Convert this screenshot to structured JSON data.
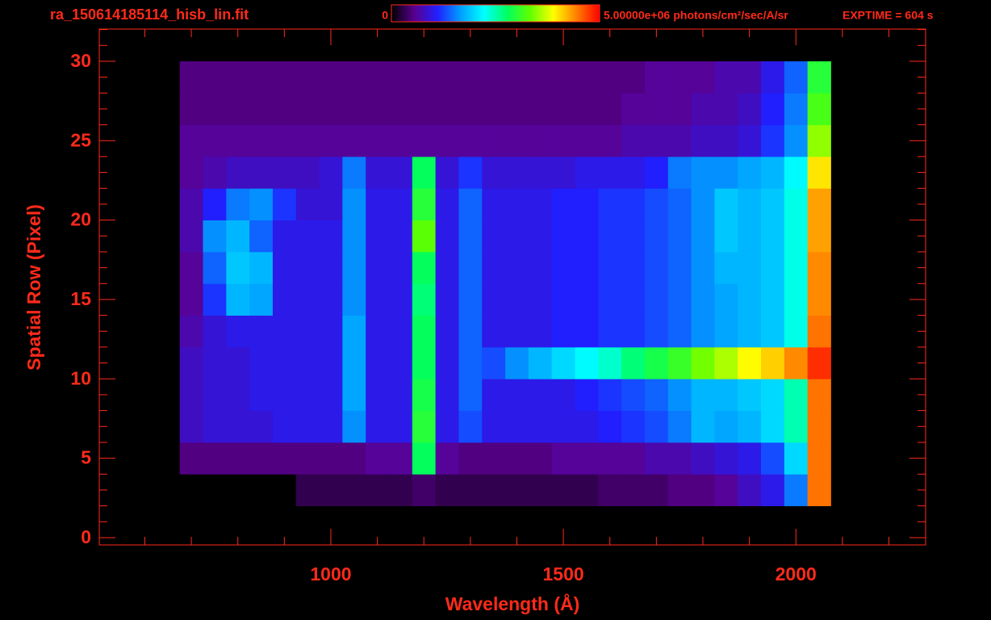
{
  "chart_data": {
    "type": "heatmap",
    "title": "ra_150614185114_hisb_lin.fit",
    "exposure": "EXPTIME = 604 s",
    "x_label": "Wavelength (Å)",
    "y_label": "Spatial Row (Pixel)",
    "xlim": [
      502,
      2279
    ],
    "ylim": [
      -0.46,
      32.03
    ],
    "xticks": [
      1000,
      1500,
      2000
    ],
    "yticks": [
      0,
      5,
      10,
      15,
      20,
      25,
      30
    ],
    "xminorticks": [
      600,
      700,
      800,
      900,
      1100,
      1200,
      1300,
      1400,
      1600,
      1700,
      1800,
      1900,
      2100,
      2200
    ],
    "yminorticks": [
      1,
      2,
      3,
      4,
      6,
      7,
      8,
      9,
      11,
      12,
      13,
      14,
      16,
      17,
      18,
      19,
      21,
      22,
      23,
      24,
      26,
      27,
      28,
      29,
      31,
      32
    ],
    "axis_color": "#ff2a1a",
    "colorbar": {
      "ticks": [
        0,
        {
          "value": 5000000,
          "label": "5.00000e+06"
        }
      ],
      "unit": "photons/cm²/sec/A/sr",
      "colors": [
        "#000000",
        "#5a0090",
        "#2020ff",
        "#00a0ff",
        "#00ffff",
        "#00ff60",
        "#60ff00",
        "#ffff00",
        "#ff8000",
        "#ff0000"
      ]
    },
    "xedges": [
      675,
      725,
      775,
      825,
      875,
      925,
      975,
      1025,
      1075,
      1125,
      1175,
      1225,
      1275,
      1325,
      1375,
      1425,
      1475,
      1525,
      1575,
      1625,
      1675,
      1725,
      1775,
      1825,
      1875,
      1925,
      1975,
      2025,
      2075
    ],
    "yedges": [
      2,
      4,
      6,
      8,
      10,
      12,
      14,
      16,
      18,
      20,
      22,
      24,
      26,
      28,
      30
    ],
    "z": [
      [
        0,
        0,
        0,
        0,
        0,
        300000.0,
        300000.0,
        300000.0,
        300000.0,
        300000.0,
        400000.0,
        300000.0,
        300000.0,
        300000.0,
        300000.0,
        300000.0,
        300000.0,
        300000.0,
        400000.0,
        400000.0,
        400000.0,
        500000.0,
        500000.0,
        600000.0,
        800000.0,
        1000000.0,
        1500000.0,
        4500000.0
      ],
      [
        500000.0,
        500000.0,
        500000.0,
        500000.0,
        500000.0,
        500000.0,
        500000.0,
        500000.0,
        600000.0,
        600000.0,
        2800000.0,
        600000.0,
        500000.0,
        500000.0,
        500000.0,
        500000.0,
        600000.0,
        600000.0,
        600000.0,
        600000.0,
        700000.0,
        700000.0,
        800000.0,
        900000.0,
        1000000.0,
        1300000.0,
        2000000.0,
        4500000.0
      ],
      [
        800000.0,
        900000.0,
        900000.0,
        900000.0,
        1000000.0,
        1000000.0,
        1000000.0,
        1600000.0,
        1000000.0,
        1000000.0,
        3000000.0,
        1000000.0,
        1300000.0,
        1000000.0,
        1000000.0,
        1000000.0,
        1000000.0,
        1000000.0,
        1100000.0,
        1200000.0,
        1300000.0,
        1500000.0,
        1800000.0,
        1700000.0,
        1800000.0,
        2000000.0,
        2500000.0,
        4500000.0
      ],
      [
        800000.0,
        900000.0,
        900000.0,
        1000000.0,
        1000000.0,
        1000000.0,
        1000000.0,
        1700000.0,
        1000000.0,
        1000000.0,
        2900000.0,
        1000000.0,
        1400000.0,
        1000000.0,
        1000000.0,
        1000000.0,
        1000000.0,
        1100000.0,
        1200000.0,
        1300000.0,
        1400000.0,
        1600000.0,
        1800000.0,
        1800000.0,
        1900000.0,
        2000000.0,
        2500000.0,
        4500000.0
      ],
      [
        800000.0,
        900000.0,
        900000.0,
        1000000.0,
        1000000.0,
        1000000.0,
        1000000.0,
        1700000.0,
        1000000.0,
        1000000.0,
        2800000.0,
        1000000.0,
        1400000.0,
        1300000.0,
        1600000.0,
        1800000.0,
        2000000.0,
        2200000.0,
        2400000.0,
        2700000.0,
        2900000.0,
        3100000.0,
        3400000.0,
        3600000.0,
        3900000.0,
        4100000.0,
        4400000.0,
        4800000.0
      ],
      [
        700000.0,
        900000.0,
        1000000.0,
        1000000.0,
        1000000.0,
        1000000.0,
        1000000.0,
        1700000.0,
        1000000.0,
        1000000.0,
        2800000.0,
        1000000.0,
        1400000.0,
        1000000.0,
        1000000.0,
        1000000.0,
        1100000.0,
        1100000.0,
        1200000.0,
        1200000.0,
        1300000.0,
        1400000.0,
        1600000.0,
        1700000.0,
        1800000.0,
        1900000.0,
        2300000.0,
        4500000.0
      ],
      [
        600000.0,
        1200000.0,
        1800000.0,
        1700000.0,
        1000000.0,
        1000000.0,
        1000000.0,
        1600000.0,
        1000000.0,
        1000000.0,
        2700000.0,
        1000000.0,
        1400000.0,
        1000000.0,
        1000000.0,
        1000000.0,
        1100000.0,
        1100000.0,
        1200000.0,
        1200000.0,
        1300000.0,
        1400000.0,
        1600000.0,
        1700000.0,
        1800000.0,
        1900000.0,
        2300000.0,
        4400000.0
      ],
      [
        600000.0,
        1400000.0,
        1900000.0,
        1800000.0,
        1000000.0,
        1000000.0,
        1000000.0,
        1600000.0,
        1000000.0,
        1000000.0,
        2800000.0,
        1000000.0,
        1400000.0,
        1000000.0,
        1000000.0,
        1000000.0,
        1100000.0,
        1100000.0,
        1200000.0,
        1200000.0,
        1300000.0,
        1400000.0,
        1600000.0,
        1800000.0,
        1800000.0,
        1900000.0,
        2300000.0,
        4400000.0
      ],
      [
        700000.0,
        1600000.0,
        1800000.0,
        1400000.0,
        1000000.0,
        1000000.0,
        1000000.0,
        1600000.0,
        1000000.0,
        1000000.0,
        3300000.0,
        1000000.0,
        1400000.0,
        1000000.0,
        1000000.0,
        1000000.0,
        1100000.0,
        1100000.0,
        1200000.0,
        1200000.0,
        1300000.0,
        1400000.0,
        1600000.0,
        1900000.0,
        1800000.0,
        1900000.0,
        2300000.0,
        4300000.0
      ],
      [
        700000.0,
        1100000.0,
        1500000.0,
        1600000.0,
        1200000.0,
        900000.0,
        900000.0,
        1600000.0,
        1000000.0,
        1000000.0,
        3000000.0,
        1000000.0,
        1400000.0,
        1000000.0,
        1000000.0,
        1000000.0,
        1100000.0,
        1100000.0,
        1200000.0,
        1200000.0,
        1300000.0,
        1400000.0,
        1600000.0,
        1900000.0,
        1800000.0,
        1900000.0,
        2300000.0,
        4300000.0
      ],
      [
        600000.0,
        700000.0,
        800000.0,
        800000.0,
        800000.0,
        800000.0,
        900000.0,
        1500000.0,
        900000.0,
        900000.0,
        2800000.0,
        900000.0,
        1200000.0,
        900000.0,
        900000.0,
        900000.0,
        900000.0,
        1000000.0,
        1000000.0,
        1000000.0,
        1100000.0,
        1500000.0,
        1600000.0,
        1600000.0,
        1700000.0,
        1800000.0,
        2200000.0,
        4000000.0
      ],
      [
        600000.0,
        600000.0,
        600000.0,
        600000.0,
        600000.0,
        600000.0,
        600000.0,
        600000.0,
        600000.0,
        600000.0,
        600000.0,
        600000.0,
        600000.0,
        600000.0,
        600000.0,
        600000.0,
        600000.0,
        600000.0,
        600000.0,
        700000.0,
        700000.0,
        700000.0,
        800000.0,
        800000.0,
        900000.0,
        1200000.0,
        1600000.0,
        3500000.0
      ],
      [
        500000.0,
        500000.0,
        500000.0,
        500000.0,
        500000.0,
        500000.0,
        500000.0,
        500000.0,
        500000.0,
        500000.0,
        500000.0,
        500000.0,
        500000.0,
        500000.0,
        500000.0,
        500000.0,
        500000.0,
        500000.0,
        500000.0,
        600000.0,
        600000.0,
        600000.0,
        700000.0,
        700000.0,
        800000.0,
        1100000.0,
        1500000.0,
        3200000.0
      ],
      [
        500000.0,
        500000.0,
        500000.0,
        500000.0,
        500000.0,
        500000.0,
        500000.0,
        500000.0,
        500000.0,
        500000.0,
        500000.0,
        500000.0,
        500000.0,
        500000.0,
        500000.0,
        500000.0,
        500000.0,
        500000.0,
        500000.0,
        500000.0,
        600000.0,
        600000.0,
        600000.0,
        700000.0,
        700000.0,
        1000000.0,
        1400000.0,
        3000000.0
      ]
    ]
  }
}
